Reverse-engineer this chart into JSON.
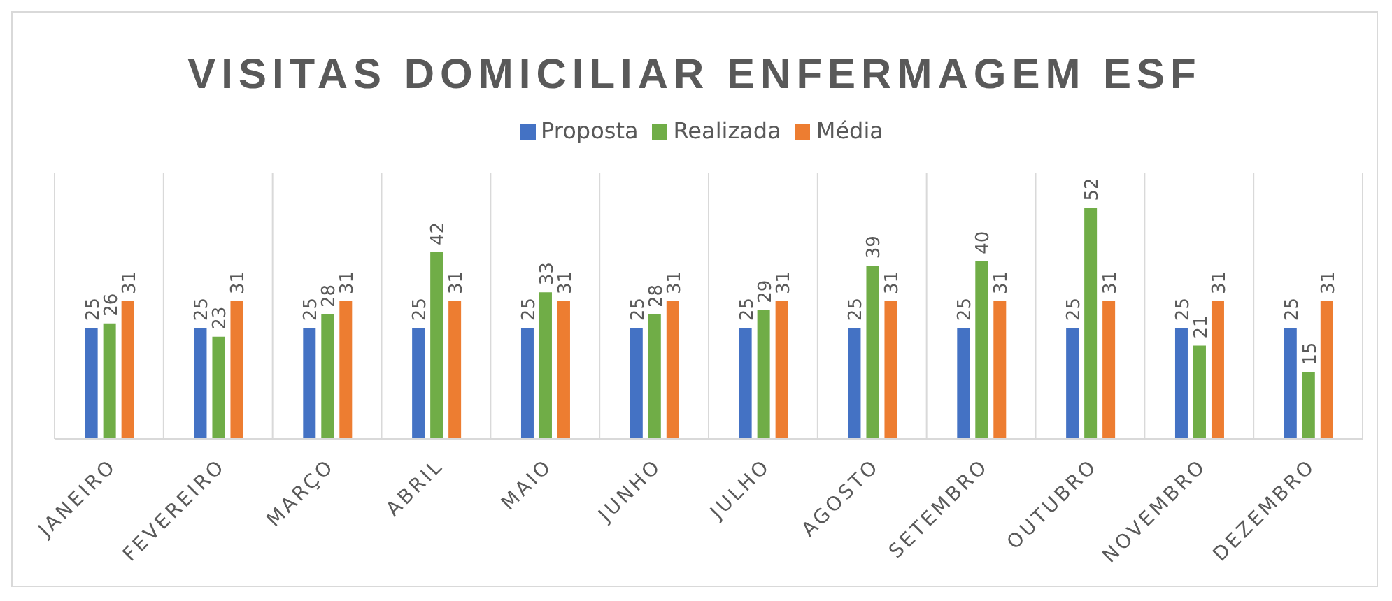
{
  "chart_data": {
    "type": "bar",
    "title": "VISITAS DOMICILIAR ENFERMAGEM ESF",
    "categories": [
      "JANEIRO",
      "FEVEREIRO",
      "MARÇO",
      "ABRIL",
      "MAIO",
      "JUNHO",
      "JULHO",
      "AGOSTO",
      "SETEMBRO",
      "OUTUBRO",
      "NOVEMBRO",
      "DEZEMBRO"
    ],
    "series": [
      {
        "name": "Proposta",
        "color": "#4472c4",
        "values": [
          25,
          25,
          25,
          25,
          25,
          25,
          25,
          25,
          25,
          25,
          25,
          25
        ]
      },
      {
        "name": "Realizada",
        "color": "#70ad47",
        "values": [
          26,
          23,
          28,
          42,
          33,
          28,
          29,
          39,
          40,
          52,
          21,
          15
        ]
      },
      {
        "name": "Média",
        "color": "#ed7d31",
        "values": [
          31,
          31,
          31,
          31,
          31,
          31,
          31,
          31,
          31,
          31,
          31,
          31
        ]
      }
    ],
    "data_labels": true,
    "grid": "x",
    "legend": "top"
  }
}
